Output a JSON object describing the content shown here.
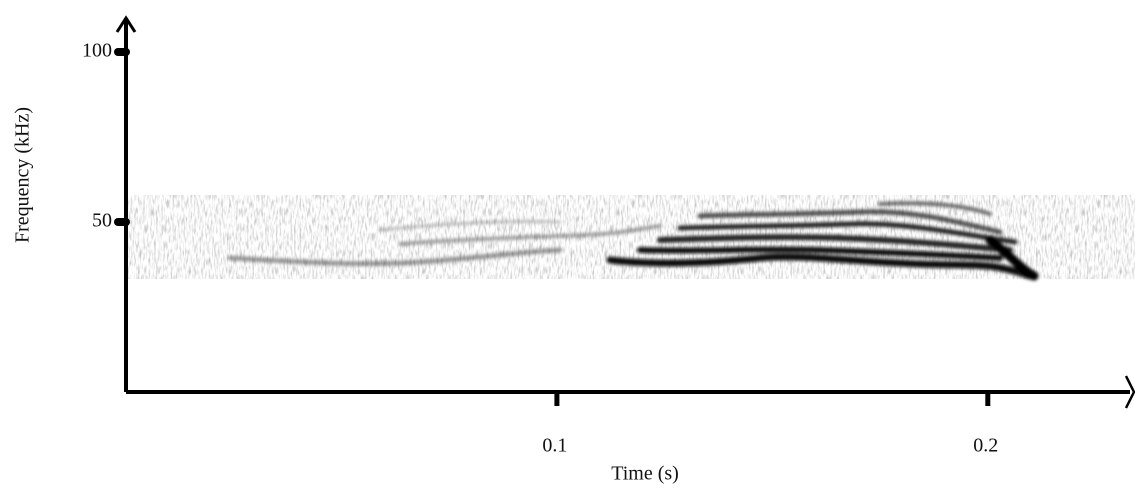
{
  "chart_data": {
    "type": "spectrogram",
    "x_label": "Time (s)",
    "y_label": "Frequency (kHz)",
    "xlim": [
      0,
      0.233
    ],
    "xticks": [
      0.1,
      0.2
    ],
    "ylim": [
      0,
      110
    ],
    "yticks": [
      50,
      100
    ]
  }
}
